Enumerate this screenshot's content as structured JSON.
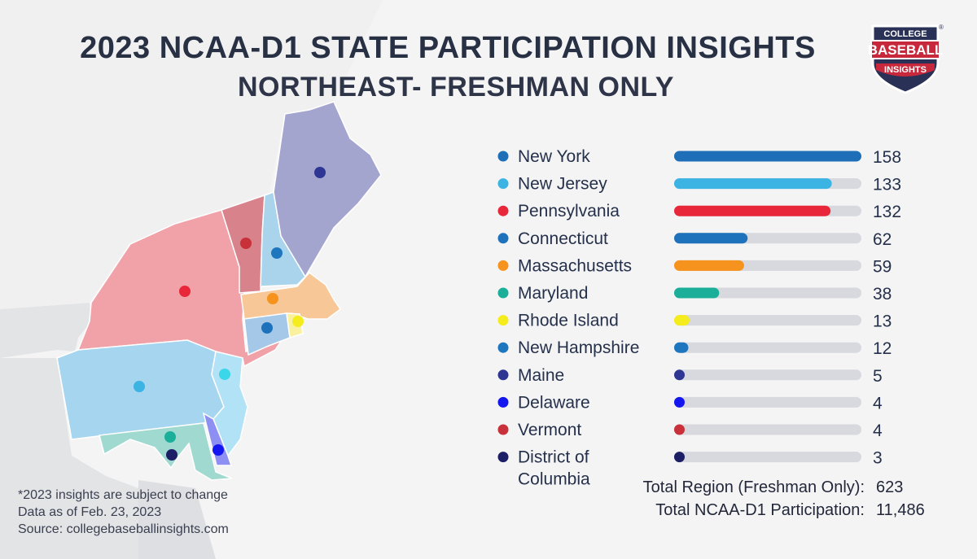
{
  "header": {
    "title": "2023 NCAA-D1  STATE PARTICIPATION INSIGHTS",
    "subtitle": "NORTHEAST- FRESHMAN ONLY"
  },
  "logo": {
    "line1": "COLLEGE",
    "line2": "BASEBALL",
    "line3": "INSIGHTS",
    "mark": "®"
  },
  "colors": {
    "background": "#f4f4f5",
    "bar_track": "#d7d9de",
    "logo_red": "#c8283c",
    "logo_navy": "#2a3157"
  },
  "chart_data": {
    "type": "bar",
    "orientation": "horizontal",
    "title": "2023 NCAA-D1  STATE PARTICIPATION INSIGHTS",
    "subtitle": "NORTHEAST- FRESHMAN ONLY",
    "xlim": [
      0,
      158
    ],
    "grid": false,
    "legend": "left",
    "categories": [
      "New York",
      "New Jersey",
      "Pennsylvania",
      "Connecticut",
      "Massachusetts",
      "Maryland",
      "Rhode Island",
      "New Hampshire",
      "Maine",
      "Delaware",
      "Vermont",
      "District of Columbia"
    ],
    "values": [
      158,
      133,
      132,
      62,
      59,
      38,
      13,
      12,
      5,
      4,
      4,
      3
    ],
    "value_labels": [
      "158",
      "133",
      "132",
      "62",
      "59",
      "38",
      "13",
      "12",
      "5",
      "4",
      "4",
      "3"
    ],
    "colors": [
      "#1f6fb8",
      "#3bb3e3",
      "#e8283a",
      "#1d72bb",
      "#f6921e",
      "#1baf9a",
      "#f5ec1d",
      "#1e76bf",
      "#2e3592",
      "#1416f0",
      "#c8303a",
      "#1c1f66"
    ]
  },
  "map": {
    "regions": [
      {
        "name": "maine",
        "fill": "#a3a5cf",
        "dot": "#2e3592"
      },
      {
        "name": "new-hampshire",
        "fill": "#a9d4ec",
        "dot": "#1e76bf"
      },
      {
        "name": "vermont",
        "fill": "#d8838b",
        "dot": "#c8303a"
      },
      {
        "name": "massachusetts",
        "fill": "#f7c797",
        "dot": "#f6921e"
      },
      {
        "name": "rhode-island",
        "fill": "#faf1a0",
        "dot": "#f5ec1d"
      },
      {
        "name": "connecticut",
        "fill": "#a5c8e8",
        "dot": "#1d72bb"
      },
      {
        "name": "new-york",
        "fill": "#f1a2a8",
        "dot": "#e8283a"
      },
      {
        "name": "new-jersey",
        "fill": "#b2e2f5",
        "dot": "#3bb3e3"
      },
      {
        "name": "pennsylvania",
        "fill": "#a6d5ef",
        "dot": "#3bb3e3"
      },
      {
        "name": "maryland",
        "fill": "#9fd9cf",
        "dot": "#1baf9a"
      },
      {
        "name": "delaware",
        "fill": "#8d90f2",
        "dot": "#1416f0"
      },
      {
        "name": "district-of-columbia",
        "fill": "#9fd9cf",
        "dot": "#1c1f66"
      }
    ]
  },
  "totals": {
    "region_label": "Total Region (Freshman Only):",
    "region_value": "623",
    "ncaa_label": "Total NCAA-D1 Participation:",
    "ncaa_value": "11,486"
  },
  "footnote": {
    "line1": "*2023 insights are subject to change",
    "line2": "Data as of Feb. 23, 2023",
    "line3": "Source: collegebaseballinsights.com"
  }
}
